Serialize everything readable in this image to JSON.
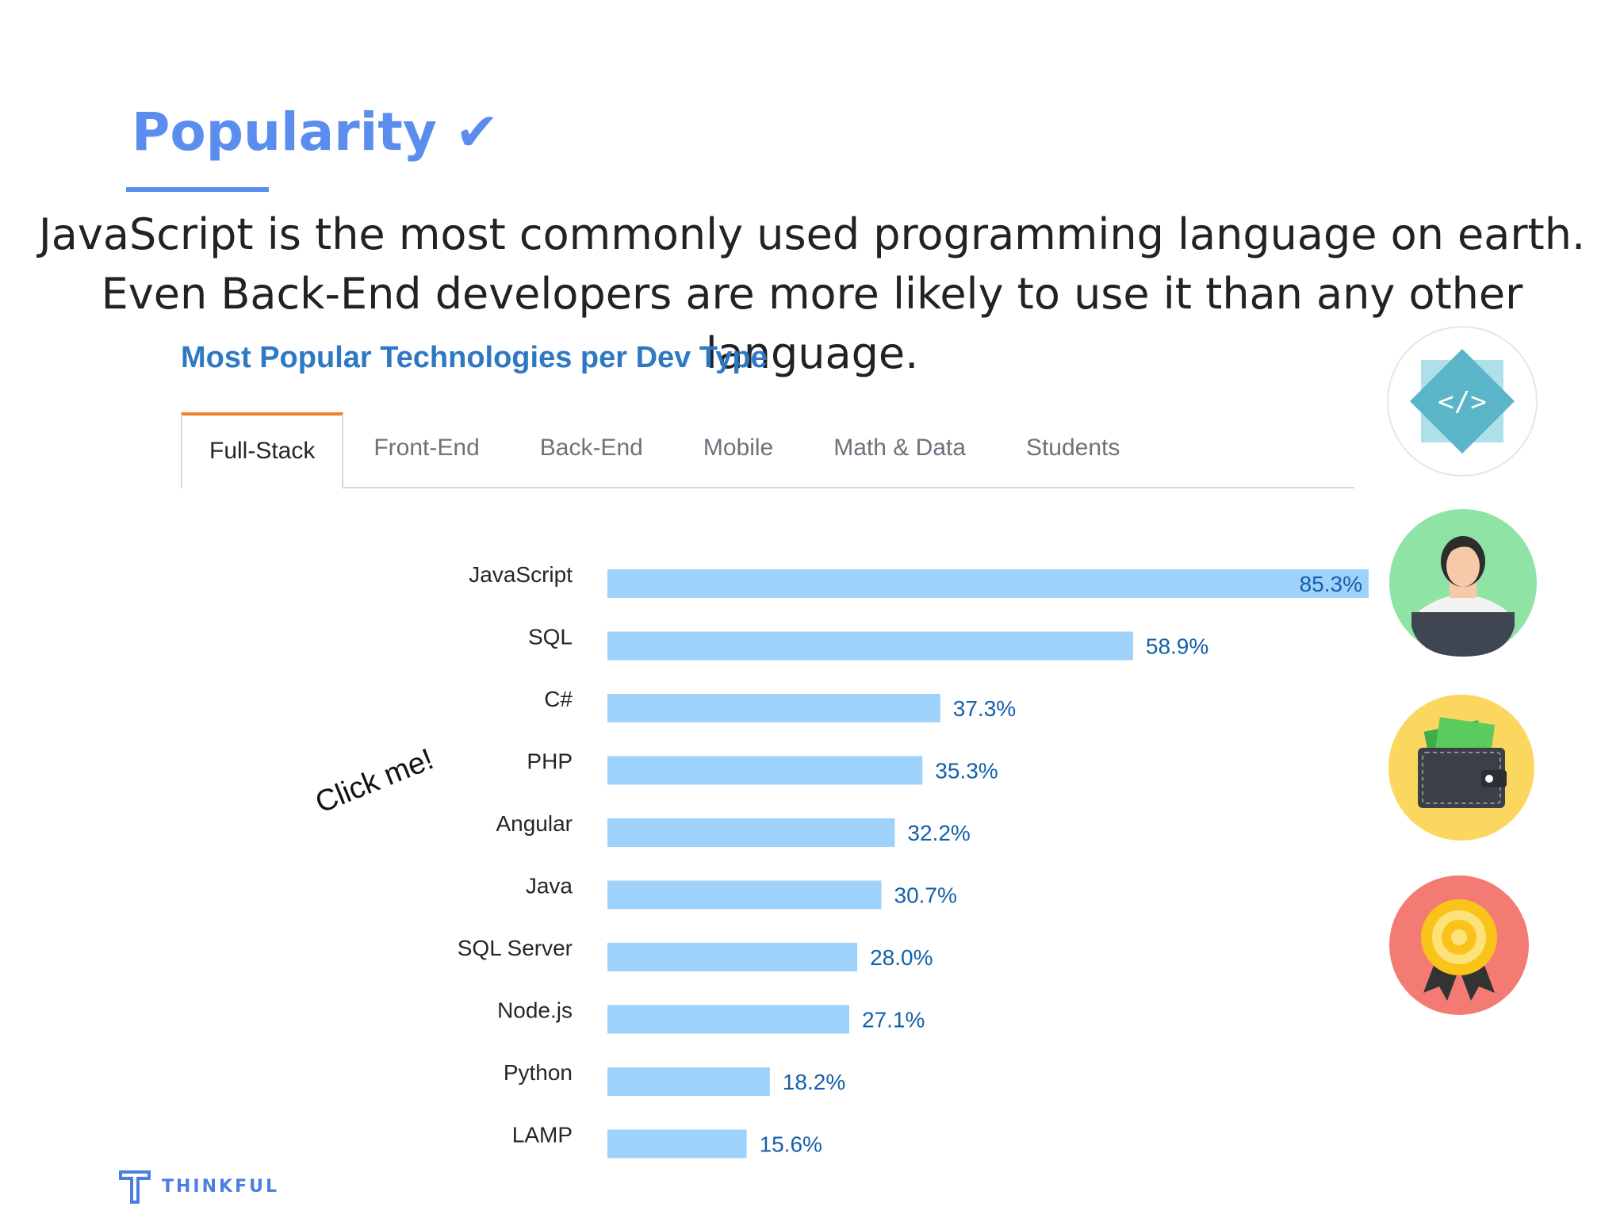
{
  "slide": {
    "title": "Popularity",
    "title_check": "✔",
    "body": "JavaScript is the most commonly used programming language on earth. Even Back-End developers are more likely to use it than any other language."
  },
  "tabs": [
    {
      "label": "Full-Stack",
      "active": true
    },
    {
      "label": "Front-End",
      "active": false
    },
    {
      "label": "Back-End",
      "active": false
    },
    {
      "label": "Mobile",
      "active": false
    },
    {
      "label": "Math & Data",
      "active": false
    },
    {
      "label": "Students",
      "active": false
    }
  ],
  "annotation": "Click me!",
  "side_icons": [
    "code-diamond-icon",
    "developer-avatar-icon",
    "wallet-icon",
    "award-badge-icon"
  ],
  "logo": {
    "text": "THINKFUL",
    "icon": "thinkful-logo-icon"
  },
  "colors": {
    "title": "#5b8def",
    "chart_title": "#2f78c4",
    "bar": "#9fd2fb",
    "value": "#1561a9",
    "active_tab": "#f48024"
  },
  "chart_data": {
    "type": "bar",
    "orientation": "horizontal",
    "title": "Most Popular Technologies per Dev Type",
    "categories": [
      "JavaScript",
      "SQL",
      "C#",
      "PHP",
      "Angular",
      "Java",
      "SQL Server",
      "Node.js",
      "Python",
      "LAMP"
    ],
    "values": [
      85.3,
      58.9,
      37.3,
      35.3,
      32.2,
      30.7,
      28.0,
      27.1,
      18.2,
      15.6
    ],
    "value_labels": [
      "85.3%",
      "58.9%",
      "37.3%",
      "35.3%",
      "32.2%",
      "30.7%",
      "28.0%",
      "27.1%",
      "18.2%",
      "15.6%"
    ],
    "unit": "%",
    "xlim": [
      0,
      85.3
    ],
    "grid": false,
    "legend": "none"
  }
}
